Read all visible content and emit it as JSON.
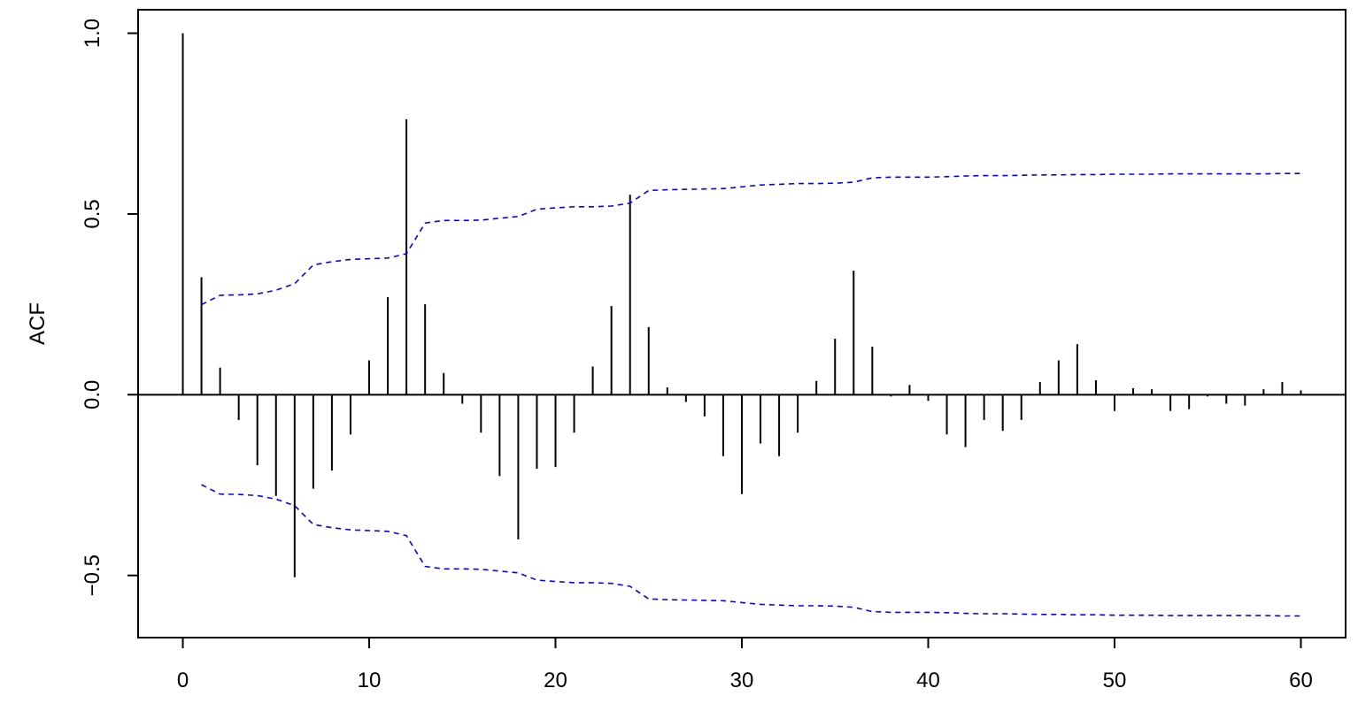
{
  "chart_data": {
    "type": "bar",
    "title": "",
    "xlabel": "",
    "ylabel": "ACF",
    "xlim": [
      -2.4,
      62.4
    ],
    "ylim": [
      -0.672,
      1.065
    ],
    "x_ticks": [
      0,
      10,
      20,
      30,
      40,
      50,
      60
    ],
    "x_tick_labels": [
      "0",
      "10",
      "20",
      "30",
      "40",
      "50",
      "60"
    ],
    "y_ticks": [
      -0.5,
      0.0,
      0.5,
      1.0
    ],
    "y_tick_labels": [
      "−0.5",
      "0.0",
      "0.5",
      "1.0"
    ],
    "grid": false,
    "lags": [
      0,
      1,
      2,
      3,
      4,
      5,
      6,
      7,
      8,
      9,
      10,
      11,
      12,
      13,
      14,
      15,
      16,
      17,
      18,
      19,
      20,
      21,
      22,
      23,
      24,
      25,
      26,
      27,
      28,
      29,
      30,
      31,
      32,
      33,
      34,
      35,
      36,
      37,
      38,
      39,
      40,
      41,
      42,
      43,
      44,
      45,
      46,
      47,
      48,
      49,
      50,
      51,
      52,
      53,
      54,
      55,
      56,
      57,
      58,
      59,
      60
    ],
    "acf": [
      1.0,
      0.325,
      0.075,
      -0.07,
      -0.195,
      -0.28,
      -0.505,
      -0.26,
      -0.21,
      -0.11,
      0.095,
      0.27,
      0.762,
      0.25,
      0.06,
      -0.025,
      -0.105,
      -0.225,
      -0.4,
      -0.205,
      -0.2,
      -0.105,
      0.078,
      0.245,
      0.553,
      0.187,
      0.02,
      -0.02,
      -0.06,
      -0.17,
      -0.275,
      -0.135,
      -0.17,
      -0.105,
      0.038,
      0.155,
      0.343,
      0.133,
      -0.005,
      0.027,
      -0.017,
      -0.11,
      -0.145,
      -0.07,
      -0.1,
      -0.07,
      0.035,
      0.095,
      0.14,
      0.04,
      -0.045,
      0.018,
      0.015,
      -0.045,
      -0.04,
      -0.005,
      -0.025,
      -0.03,
      0.015,
      0.035,
      0.012
    ],
    "confidence_band": [
      null,
      0.249,
      0.275,
      0.276,
      0.279,
      0.289,
      0.307,
      0.359,
      0.368,
      0.374,
      0.376,
      0.378,
      0.39,
      0.475,
      0.482,
      0.482,
      0.483,
      0.488,
      0.493,
      0.513,
      0.517,
      0.52,
      0.52,
      0.522,
      0.53,
      0.565,
      0.567,
      0.568,
      0.569,
      0.57,
      0.575,
      0.58,
      0.582,
      0.584,
      0.584,
      0.585,
      0.588,
      0.6,
      0.602,
      0.602,
      0.602,
      0.603,
      0.605,
      0.606,
      0.606,
      0.607,
      0.608,
      0.608,
      0.609,
      0.609,
      0.61,
      0.61,
      0.61,
      0.611,
      0.611,
      0.611,
      0.611,
      0.611,
      0.611,
      0.612,
      0.612
    ],
    "colors": {
      "bars": "#000000",
      "band": "#0000ff",
      "zero_line": "#000000",
      "frame": "#000000"
    }
  }
}
